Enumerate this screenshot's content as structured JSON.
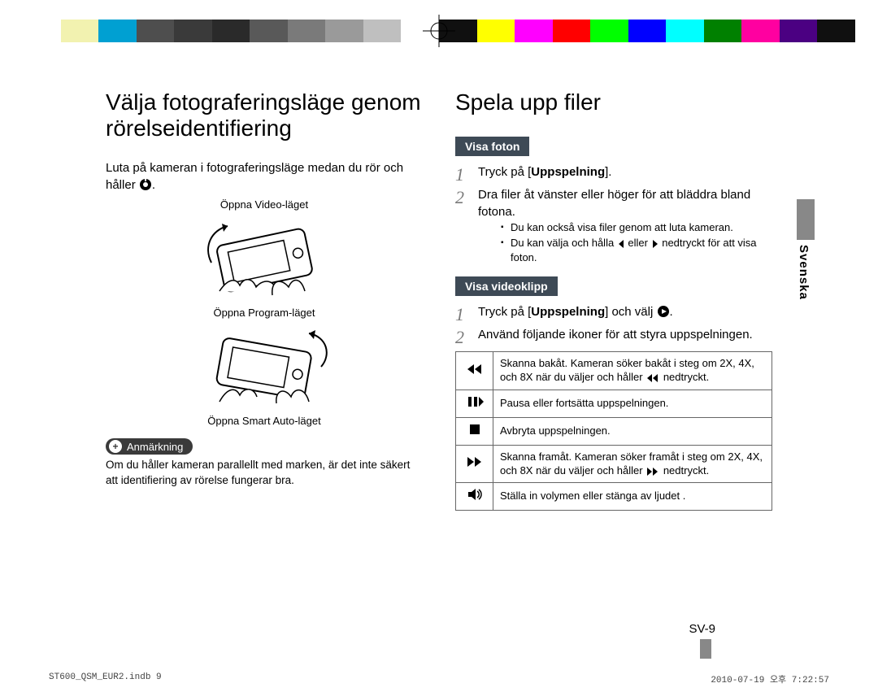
{
  "colorBar": [
    "#ffffff",
    "#f2f2b0",
    "#00a0d2",
    "#4e4e4e",
    "#3a3a3a",
    "#2a2a2a",
    "#595959",
    "#7a7a7a",
    "#9a9a9a",
    "#bfbfbf",
    "#ffffff",
    "#101010",
    "#ffff00",
    "#ff00ff",
    "#ff0000",
    "#00ff00",
    "#0000ff",
    "#00ffff",
    "#008000",
    "#ff00a0",
    "#4b0082",
    "#101010"
  ],
  "left": {
    "heading": "Välja fotograferingsläge genom rörelseidentifiering",
    "intro_a": "Luta på kameran i fotograferingsläge medan du rör och håller ",
    "intro_b": ".",
    "cap1": "Öppna Video-läget",
    "cap2": "Öppna Program-läget",
    "cap3": "Öppna Smart Auto-läget",
    "noteLabel": "Anmärkning",
    "noteText": "Om du håller kameran parallellt med marken, är det inte säkert att identifiering av rörelse fungerar bra."
  },
  "right": {
    "heading": "Spela upp filer",
    "sec1": "Visa foton",
    "s1_1a": "Tryck på [",
    "s1_1b": "Uppspelning",
    "s1_1c": "].",
    "s1_2": "Dra filer åt vänster eller höger för att bläddra bland fotona.",
    "s1_b1": "Du kan också visa filer genom att luta kameran.",
    "s1_b2a": "Du kan välja och hålla ",
    "s1_b2b": " eller ",
    "s1_b2c": " nedtryckt för att visa foton.",
    "sec2": "Visa videoklipp",
    "s2_1a": "Tryck på [",
    "s2_1b": "Uppspelning",
    "s2_1c": "] och välj ",
    "s2_1d": ".",
    "s2_2": "Använd följande ikoner för att styra uppspelningen.",
    "tbl": [
      {
        "icon": "rew",
        "text_a": "Skanna bakåt. Kameran söker bakåt i steg om 2X, 4X, och 8X när du väljer och håller ",
        "text_b": " nedtryckt."
      },
      {
        "icon": "pause",
        "text_a": "Pausa eller fortsätta uppspelningen.",
        "text_b": ""
      },
      {
        "icon": "stop",
        "text_a": "Avbryta uppspelningen.",
        "text_b": ""
      },
      {
        "icon": "ffwd",
        "text_a": "Skanna framåt. Kameran söker framåt i steg om 2X, 4X, och 8X när du väljer och håller ",
        "text_b": " nedtryckt."
      },
      {
        "icon": "vol",
        "text_a": "Ställa in volymen eller stänga av ljudet .",
        "text_b": ""
      }
    ]
  },
  "sideTab": "Svenska",
  "pageNum": "SV-9",
  "footer": {
    "file": "ST600_QSM_EUR2.indb   9",
    "stamp": "2010-07-19   오후 7:22:57"
  }
}
